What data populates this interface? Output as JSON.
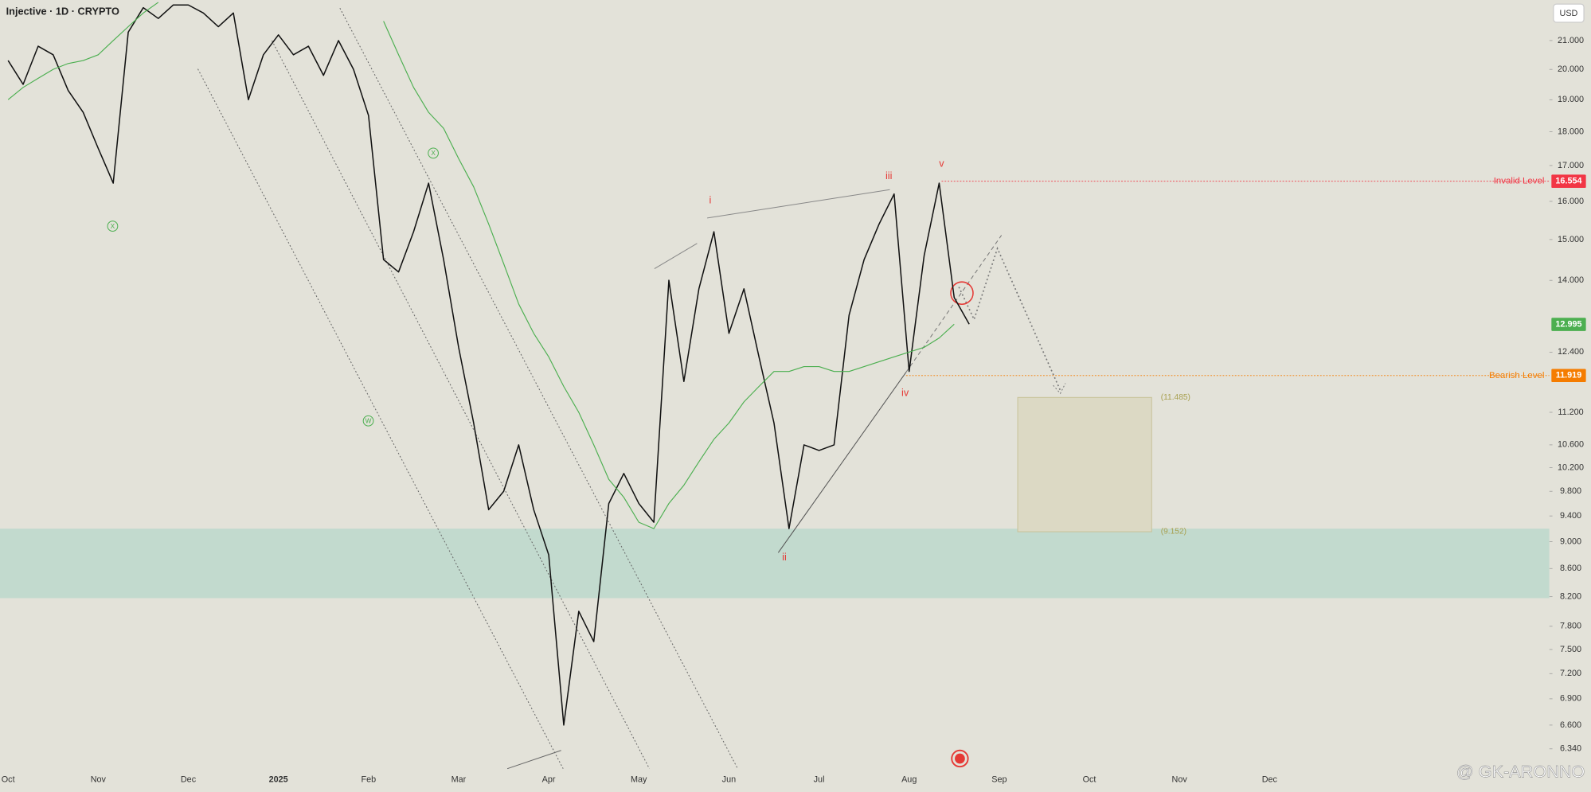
{
  "chart_data": {
    "type": "line",
    "title": "Injective · 1D · CRYPTO",
    "currency": "USD",
    "scale": "log",
    "grid": false,
    "ylim": [
      6.11,
      22.49
    ],
    "yticks": [
      {
        "value": 21,
        "label": "21.000"
      },
      {
        "value": 20,
        "label": "20.000"
      },
      {
        "value": 19,
        "label": "19.000"
      },
      {
        "value": 18,
        "label": "18.000"
      },
      {
        "value": 17,
        "label": "17.000"
      },
      {
        "value": 16,
        "label": "16.000"
      },
      {
        "value": 15,
        "label": "15.000"
      },
      {
        "value": 14,
        "label": "14.000"
      },
      {
        "value": 12.4,
        "label": "12.400"
      },
      {
        "value": 11.2,
        "label": "11.200"
      },
      {
        "value": 10.6,
        "label": "10.600"
      },
      {
        "value": 10.2,
        "label": "10.200"
      },
      {
        "value": 9.8,
        "label": "9.800"
      },
      {
        "value": 9.4,
        "label": "9.400"
      },
      {
        "value": 9,
        "label": "9.000"
      },
      {
        "value": 8.6,
        "label": "8.600"
      },
      {
        "value": 8.2,
        "label": "8.200"
      },
      {
        "value": 7.8,
        "label": "7.800"
      },
      {
        "value": 7.5,
        "label": "7.500"
      },
      {
        "value": 7.2,
        "label": "7.200"
      },
      {
        "value": 6.9,
        "label": "6.900"
      },
      {
        "value": 6.6,
        "label": "6.600"
      },
      {
        "value": 6.34,
        "label": "6.340"
      }
    ],
    "categories": [
      "Oct",
      null,
      null,
      null,
      null,
      null,
      "Nov",
      null,
      null,
      null,
      null,
      null,
      "Dec",
      null,
      null,
      null,
      null,
      null,
      "2025",
      null,
      null,
      null,
      null,
      null,
      "Feb",
      null,
      null,
      null,
      null,
      null,
      "Mar",
      null,
      null,
      null,
      null,
      null,
      "Apr",
      null,
      null,
      null,
      null,
      null,
      "May",
      null,
      null,
      null,
      null,
      null,
      "Jun",
      null,
      null,
      null,
      null,
      null,
      "Jul",
      null,
      null,
      null,
      null,
      null,
      "Aug",
      null,
      null,
      null,
      null,
      null,
      "Sep",
      null,
      null,
      null,
      null,
      null,
      "Oct",
      null,
      null,
      null,
      null,
      null,
      "Nov",
      null,
      null,
      null,
      null,
      null,
      "Dec",
      null,
      null,
      null,
      null,
      null
    ],
    "series": [
      {
        "color": "#111111",
        "values": [
          20.3,
          19.5,
          20.8,
          20.5,
          19.3,
          18.6,
          17.5,
          16.5,
          21.3,
          22.2,
          21.8,
          22.3,
          22.3,
          22.0,
          21.5,
          22.0,
          19.0,
          20.5,
          21.2,
          20.5,
          20.8,
          19.8,
          21.0,
          20.0,
          18.5,
          14.5,
          14.2,
          15.2,
          16.5,
          14.5,
          12.5,
          11.0,
          9.5,
          9.8,
          10.6,
          9.5,
          8.8,
          6.6,
          8.0,
          7.6,
          9.6,
          10.1,
          9.6,
          9.3,
          14.0,
          11.8,
          13.8,
          15.2,
          12.8,
          13.8,
          12.3,
          11.0,
          9.2,
          10.6,
          10.5,
          10.6,
          13.2,
          14.5,
          15.4,
          16.2,
          12.0,
          14.6,
          16.5,
          13.6,
          13.0,
          null,
          null,
          null,
          null,
          null,
          null,
          null,
          null,
          null,
          null,
          null,
          null,
          null,
          null,
          null,
          null,
          null,
          null,
          null,
          null,
          null,
          null,
          null,
          null,
          null
        ]
      },
      {
        "color": "#4caf50",
        "values": [
          19.0,
          19.4,
          19.7,
          20.0,
          20.2,
          20.3,
          20.5,
          21.0,
          21.5,
          22.0,
          22.4,
          null,
          null,
          null,
          null,
          null,
          null,
          null,
          null,
          null,
          null,
          null,
          null,
          null,
          null,
          21.7,
          20.5,
          19.4,
          18.6,
          18.1,
          17.2,
          16.4,
          15.4,
          14.4,
          13.45,
          12.8,
          12.3,
          11.7,
          11.2,
          10.6,
          10.0,
          9.7,
          9.3,
          9.2,
          9.6,
          9.9,
          10.3,
          10.7,
          11.0,
          11.4,
          11.7,
          12.0,
          12.0,
          12.1,
          12.1,
          12.0,
          12.0,
          12.1,
          12.2,
          12.3,
          12.4,
          12.5,
          12.7,
          13.0,
          null,
          null,
          null,
          null,
          null,
          null,
          null,
          null,
          null,
          null,
          null,
          null,
          null,
          null,
          null,
          null,
          null,
          null,
          null,
          null,
          null,
          null,
          null,
          null,
          null,
          null
        ]
      }
    ],
    "levels": [
      {
        "label": "Invalid Level",
        "value": 16.554,
        "color": "#f23645"
      },
      {
        "label": "Bearish Level",
        "value": 11.919,
        "color": "#f57c00"
      }
    ],
    "last_price": {
      "value": 12.995,
      "color": "#4caf50"
    },
    "zone": [
      8.18,
      9.2
    ],
    "target_box": [
      {
        "value": 11.485,
        "label": "(11.485)"
      },
      {
        "value": 9.152,
        "label": "(9.152)"
      }
    ],
    "waves": [
      "i",
      "ii",
      "iii",
      "iv",
      "v"
    ],
    "corrective": [
      "X",
      "W",
      "X"
    ]
  },
  "watermark": "@ GK-ARONNO"
}
